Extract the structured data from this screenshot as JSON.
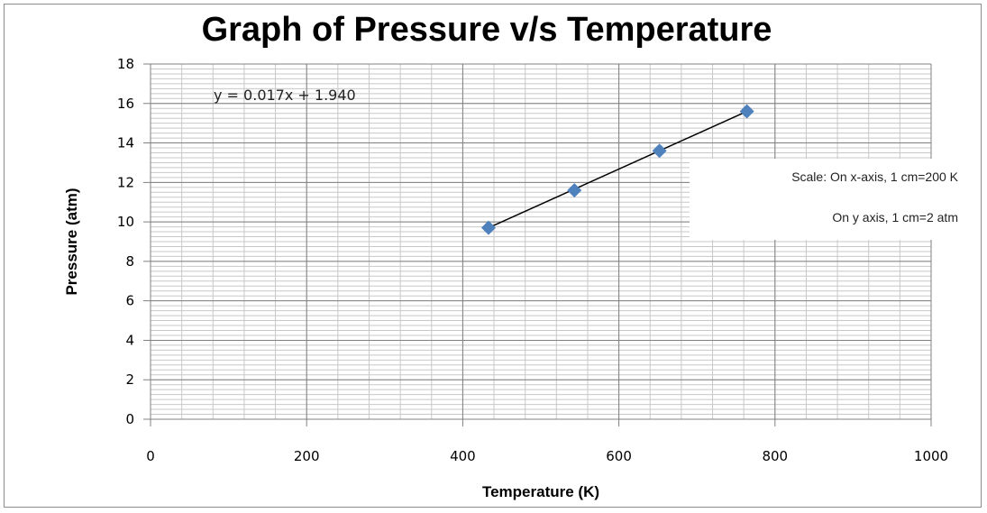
{
  "chart_data": {
    "type": "scatter",
    "title": "Graph of Pressure v/s Temperature",
    "xlabel": "Temperature (K)",
    "ylabel": "Pressure (atm)",
    "xlim": [
      0,
      1000
    ],
    "ylim": [
      0,
      18
    ],
    "x_ticks": [
      0,
      200,
      400,
      600,
      800,
      1000
    ],
    "y_ticks": [
      0,
      2,
      4,
      6,
      8,
      10,
      12,
      14,
      16,
      18
    ],
    "grid": true,
    "x": [
      433,
      543,
      652,
      764
    ],
    "y": [
      9.7,
      11.6,
      13.6,
      15.6
    ],
    "trendline": {
      "equation": "y = 0.017x + 1.940"
    },
    "annotations": [
      "Scale: On x-axis, 1 cm=200 K",
      "On y axis, 1 cm=2 atm"
    ],
    "marker_color": "#4f81bd",
    "line_color": "#000000"
  }
}
